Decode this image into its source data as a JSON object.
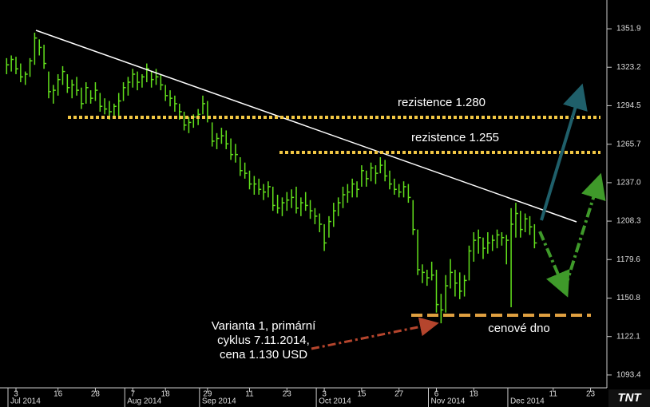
{
  "chart_data": {
    "type": "hlc",
    "color": "#62e01c",
    "ylim": [
      1083.8,
      1373.4
    ],
    "yticks": [
      1351.9,
      1323.2,
      1294.5,
      1265.7,
      {
        "value": 1237,
        "label": "1237.0"
      },
      1208.3,
      1179.6,
      1150.8,
      1122.1,
      1093.4
    ],
    "categories": [
      null,
      null,
      "3",
      null,
      null,
      null,
      null,
      null,
      null,
      null,
      null,
      "16",
      null,
      null,
      null,
      null,
      null,
      null,
      null,
      "28",
      null,
      null,
      null,
      null,
      null,
      null,
      null,
      "7",
      null,
      null,
      null,
      null,
      null,
      null,
      "18",
      null,
      null,
      null,
      null,
      null,
      null,
      null,
      null,
      "29",
      null,
      null,
      null,
      null,
      null,
      null,
      null,
      null,
      "11",
      null,
      null,
      null,
      null,
      null,
      null,
      null,
      "23",
      null,
      null,
      null,
      null,
      null,
      null,
      null,
      "3",
      null,
      null,
      null,
      null,
      null,
      null,
      null,
      "15",
      null,
      null,
      null,
      null,
      null,
      null,
      null,
      "27",
      null,
      null,
      null,
      null,
      null,
      null,
      null,
      "6",
      null,
      null,
      null,
      null,
      null,
      null,
      null,
      "18",
      null,
      null,
      null,
      null,
      null,
      null,
      null,
      null,
      null,
      null,
      null,
      null,
      null,
      null,
      null,
      null,
      "11",
      null,
      null,
      null,
      null,
      null,
      null,
      null,
      "23",
      null,
      null,
      null
    ],
    "months": [
      null,
      null,
      "Jul 2014",
      null,
      null,
      null,
      null,
      null,
      null,
      null,
      null,
      null,
      null,
      null,
      null,
      null,
      null,
      null,
      null,
      null,
      null,
      null,
      null,
      null,
      null,
      null,
      null,
      "Aug 2014",
      null,
      null,
      null,
      null,
      null,
      null,
      null,
      null,
      null,
      null,
      null,
      null,
      null,
      null,
      null,
      "Sep 2014",
      null,
      null,
      null,
      null,
      null,
      null,
      null,
      null,
      null,
      null,
      null,
      null,
      null,
      null,
      null,
      null,
      null,
      null,
      null,
      null,
      null,
      null,
      null,
      null,
      "Oct 2014",
      null,
      null,
      null,
      null,
      null,
      null,
      null,
      null,
      null,
      null,
      null,
      null,
      null,
      null,
      null,
      null,
      null,
      null,
      null,
      null,
      null,
      null,
      null,
      "Nov 2014",
      null,
      null,
      null,
      null,
      null,
      null,
      null,
      null,
      null,
      null,
      null,
      null,
      null,
      null,
      null,
      null,
      "Dec 2014",
      null,
      null,
      null,
      null,
      null,
      null,
      null,
      null,
      null,
      null,
      null,
      null,
      null,
      null,
      null,
      null,
      null,
      null,
      null
    ],
    "high": [
      1330,
      1332,
      1331,
      1326,
      1320,
      1330,
      1349,
      1344,
      1340,
      1320,
      1310,
      1318,
      1324,
      1318,
      1314,
      1316,
      1308,
      1312,
      1306,
      1312,
      1304,
      1300,
      1298,
      1296,
      1304,
      1312,
      1316,
      1322,
      1320,
      1318,
      1326,
      1320,
      1322,
      1318,
      1310,
      1306,
      1302,
      1296,
      1290,
      1286,
      1288,
      1292,
      1302,
      1298,
      1282,
      1274,
      1278,
      1276,
      1270,
      1266,
      1256,
      1252,
      1246,
      1242,
      1240,
      1236,
      1238,
      1234,
      1228,
      1226,
      1230,
      1232,
      1234,
      1226,
      1230,
      1224,
      1218,
      1214,
      1206,
      1212,
      1222,
      1226,
      1234,
      1236,
      1240,
      1238,
      1250,
      1246,
      1252,
      1250,
      1256,
      1254,
      1246,
      1240,
      1236,
      1238,
      1236,
      1224,
      1202,
      1176,
      1172,
      1178,
      1172,
      1154,
      1168,
      1180,
      1172,
      1170,
      1168,
      1190,
      1200,
      1202,
      1196,
      1200,
      1198,
      1202,
      1200,
      1198,
      1218,
      1222,
      1216,
      1214,
      1212,
      1206,
      null,
      null,
      null,
      null,
      null,
      null,
      null,
      null,
      null,
      null,
      null,
      null,
      null,
      null,
      null
    ],
    "low": [
      1318,
      1320,
      1318,
      1312,
      1310,
      1316,
      1325,
      1332,
      1322,
      1300,
      1296,
      1302,
      1310,
      1304,
      1300,
      1302,
      1292,
      1296,
      1296,
      1298,
      1290,
      1288,
      1284,
      1286,
      1286,
      1298,
      1302,
      1308,
      1306,
      1308,
      1312,
      1308,
      1310,
      1306,
      1298,
      1294,
      1290,
      1284,
      1276,
      1274,
      1278,
      1280,
      1288,
      1282,
      1264,
      1262,
      1266,
      1262,
      1254,
      1252,
      1242,
      1240,
      1232,
      1228,
      1228,
      1224,
      1226,
      1216,
      1214,
      1212,
      1216,
      1218,
      1214,
      1212,
      1216,
      1210,
      1206,
      1200,
      1186,
      1196,
      1204,
      1212,
      1218,
      1222,
      1226,
      1226,
      1234,
      1234,
      1238,
      1236,
      1244,
      1238,
      1232,
      1228,
      1226,
      1226,
      1222,
      1198,
      1168,
      1162,
      1160,
      1164,
      1140,
      1132,
      1140,
      1158,
      1152,
      1150,
      1152,
      1164,
      1178,
      1184,
      1180,
      1184,
      1186,
      1188,
      1190,
      1176,
      1144,
      1196,
      1196,
      1200,
      1198,
      1188,
      null,
      null,
      null,
      null,
      null,
      null,
      null,
      null,
      null,
      null,
      null,
      null,
      null,
      null,
      null
    ],
    "close": [
      1325,
      1329,
      1322,
      1316,
      1318,
      1328,
      1345,
      1338,
      1326,
      1305,
      1306,
      1314,
      1320,
      1308,
      1310,
      1306,
      1296,
      1308,
      1300,
      1306,
      1294,
      1292,
      1290,
      1294,
      1298,
      1308,
      1312,
      1318,
      1312,
      1316,
      1322,
      1314,
      1316,
      1310,
      1302,
      1300,
      1296,
      1290,
      1280,
      1282,
      1286,
      1288,
      1296,
      1286,
      1268,
      1270,
      1272,
      1266,
      1258,
      1258,
      1246,
      1244,
      1236,
      1236,
      1232,
      1230,
      1234,
      1220,
      1218,
      1222,
      1224,
      1226,
      1218,
      1222,
      1220,
      1216,
      1212,
      1206,
      1192,
      1208,
      1216,
      1222,
      1228,
      1230,
      1236,
      1232,
      1246,
      1240,
      1248,
      1244,
      1250,
      1242,
      1236,
      1232,
      1230,
      1234,
      1226,
      1202,
      1172,
      1170,
      1166,
      1168,
      1146,
      1142,
      1160,
      1170,
      1162,
      1156,
      1164,
      1186,
      1194,
      1196,
      1188,
      1192,
      1194,
      1198,
      1196,
      1194,
      1206,
      1214,
      1202,
      1210,
      1204,
      1192,
      null,
      null,
      null,
      null,
      null,
      null,
      null,
      null,
      null,
      null,
      null,
      null,
      null,
      null,
      null
    ]
  },
  "annotations": {
    "resistance_1": "rezistence 1.280",
    "resistance_2": "rezistence 1.255",
    "floor": "cenové dno",
    "variant": [
      "Varianta 1, primární",
      "cyklus 7.11.2014,",
      "cena 1.130 USD"
    ]
  },
  "logo": "TNT"
}
